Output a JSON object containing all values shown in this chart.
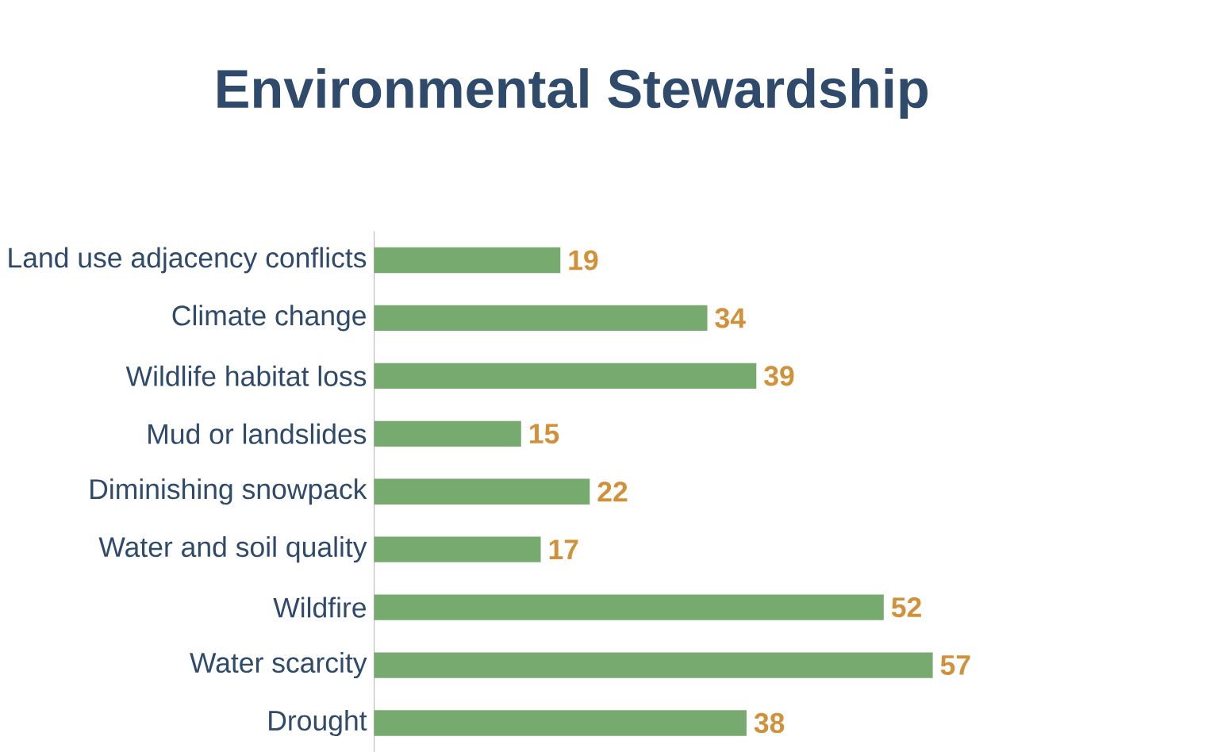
{
  "chart_data": {
    "type": "bar",
    "orientation": "horizontal",
    "title": "Environmental Stewardship",
    "categories": [
      "Land use adjacency conflicts",
      "Climate change",
      "Wildlife habitat loss",
      "Mud or landslides",
      "Diminishing snowpack",
      "Water and soil quality",
      "Wildfire",
      "Water scarcity",
      "Drought"
    ],
    "values": [
      19,
      34,
      39,
      15,
      22,
      17,
      52,
      57,
      38
    ],
    "color": "#77aa6e",
    "data_labels": true
  }
}
